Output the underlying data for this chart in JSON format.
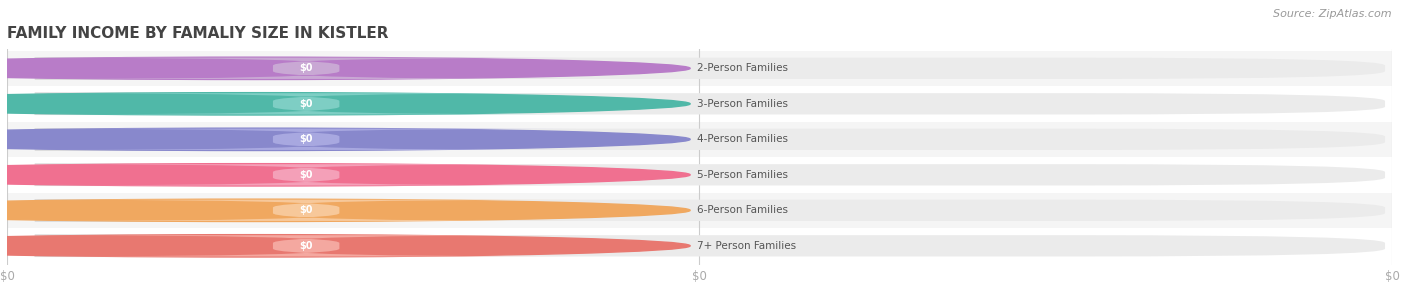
{
  "title": "FAMILY INCOME BY FAMALIY SIZE IN KISTLER",
  "source": "Source: ZipAtlas.com",
  "categories": [
    "2-Person Families",
    "3-Person Families",
    "4-Person Families",
    "5-Person Families",
    "6-Person Families",
    "7+ Person Families"
  ],
  "values": [
    0,
    0,
    0,
    0,
    0,
    0
  ],
  "bar_colors": [
    "#c9a8d4",
    "#7ecec4",
    "#a8a8e0",
    "#f4a0b8",
    "#f7c89a",
    "#f4a8a0"
  ],
  "dot_colors": [
    "#b87cc8",
    "#50b8a8",
    "#8888cc",
    "#f07090",
    "#f0a860",
    "#e87870"
  ],
  "background_color": "#ffffff",
  "row_bg_odd": "#f5f5f5",
  "row_bg_even": "#ffffff",
  "track_color": "#ebebeb",
  "label_color": "#555555",
  "value_label_color": "#ffffff",
  "title_color": "#444444",
  "source_color": "#999999",
  "tick_color": "#aaaaaa",
  "gridline_color": "#cccccc",
  "bar_height": 0.6,
  "figsize": [
    14.06,
    3.05
  ],
  "dpi": 100,
  "xlim_max": 1.0,
  "xtick_positions": [
    0.0,
    0.5,
    1.0
  ],
  "xtick_labels": [
    "$0",
    "$0",
    "$0"
  ]
}
